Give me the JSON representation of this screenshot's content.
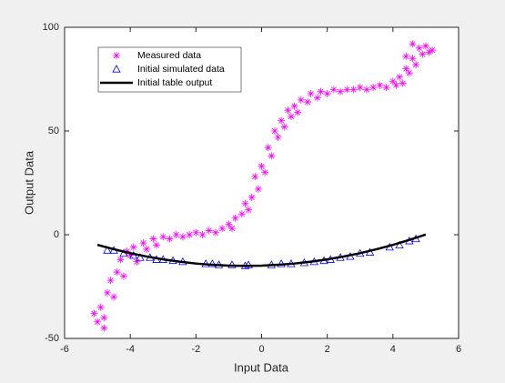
{
  "chart_data": {
    "type": "scatter",
    "xlabel": "Input Data",
    "ylabel": "Output Data",
    "xlim": [
      -6,
      6
    ],
    "xticks": [
      -6,
      -4,
      -2,
      0,
      2,
      4,
      6
    ],
    "ylim": [
      -50,
      100
    ],
    "yticks": [
      -50,
      0,
      50,
      100
    ],
    "legend": "northwest",
    "series": [
      {
        "name": "Measured data",
        "color": "#ff00ff",
        "marker": "asterisk",
        "x": [
          -5.1,
          -5.0,
          -4.9,
          -4.8,
          -4.7,
          -4.6,
          -4.5,
          -4.4,
          -4.3,
          -4.2,
          -4.1,
          -4.0,
          -3.9,
          -3.8,
          -3.6,
          -3.5,
          -3.3,
          -3.2,
          -3.0,
          -2.8,
          -2.6,
          -2.4,
          -2.2,
          -2.0,
          -1.8,
          -1.6,
          -1.4,
          -1.2,
          -1.0,
          -0.9,
          -0.8,
          -0.6,
          -0.5,
          -0.4,
          -0.3,
          -0.2,
          -0.1,
          0.0,
          0.1,
          0.2,
          0.3,
          0.4,
          0.5,
          0.6,
          0.7,
          0.8,
          0.9,
          1.0,
          1.1,
          1.2,
          1.4,
          1.5,
          1.7,
          1.8,
          2.0,
          2.2,
          2.4,
          2.6,
          2.8,
          3.0,
          3.2,
          3.4,
          3.6,
          3.8,
          4.0,
          4.1,
          4.2,
          4.3,
          4.4,
          4.5,
          4.6,
          4.7,
          4.8,
          4.9,
          5.0,
          5.1,
          5.2,
          4.6,
          4.4,
          -4.8
        ],
        "values": [
          -38,
          -42,
          -35,
          -45,
          -28,
          -22,
          -30,
          -18,
          -12,
          -20,
          -8,
          -10,
          -6,
          -13,
          -4,
          -7,
          -2,
          -5,
          -1,
          -2,
          0,
          -1,
          0,
          1,
          0,
          2,
          1,
          3,
          5,
          3,
          8,
          10,
          15,
          12,
          18,
          28,
          22,
          33,
          30,
          42,
          38,
          50,
          47,
          55,
          52,
          60,
          57,
          62,
          59,
          65,
          64,
          68,
          66,
          69,
          68,
          70,
          69,
          70,
          70,
          71,
          70,
          71,
          72,
          71,
          74,
          72,
          76,
          73,
          80,
          78,
          85,
          82,
          90,
          87,
          91,
          88,
          89,
          92,
          86,
          -40
        ]
      },
      {
        "name": "Initial simulated data",
        "color": "#0000ff",
        "marker": "triangle",
        "x": [
          -4.7,
          -4.5,
          -4.2,
          -3.9,
          -3.7,
          -3.4,
          -3.2,
          -3.0,
          -2.7,
          -2.4,
          -1.7,
          -1.5,
          -1.3,
          -0.9,
          -0.5,
          -0.4,
          0.3,
          0.6,
          0.9,
          1.3,
          1.6,
          1.9,
          2.1,
          2.4,
          2.7,
          3.0,
          3.3,
          3.9,
          4.2,
          4.5,
          4.7
        ],
        "values": [
          -7.5,
          -7.5,
          -9,
          -10,
          -11,
          -11,
          -12,
          -12,
          -12.5,
          -13,
          -14,
          -14,
          -14.5,
          -14.5,
          -15,
          -14.5,
          -14.5,
          -14,
          -14,
          -13.5,
          -13,
          -12.5,
          -12,
          -11,
          -10.5,
          -9,
          -8.5,
          -6,
          -5,
          -3,
          -2
        ]
      },
      {
        "name": "Initial table output",
        "color": "#000000",
        "marker": "line",
        "x": [
          -5,
          -4.5,
          -4,
          -3.5,
          -3,
          -2.5,
          -2,
          -1.5,
          -1,
          -0.5,
          0,
          0.5,
          1,
          1.5,
          2,
          2.5,
          3,
          3.5,
          4,
          4.5,
          5
        ],
        "values": [
          -4.9,
          -7,
          -8.9,
          -10.5,
          -11.9,
          -13,
          -13.9,
          -14.5,
          -14.9,
          -15,
          -14.9,
          -14.5,
          -13.9,
          -13,
          -11.9,
          -10.5,
          -8.9,
          -7,
          -4.9,
          -2.5,
          0.1
        ]
      }
    ]
  }
}
